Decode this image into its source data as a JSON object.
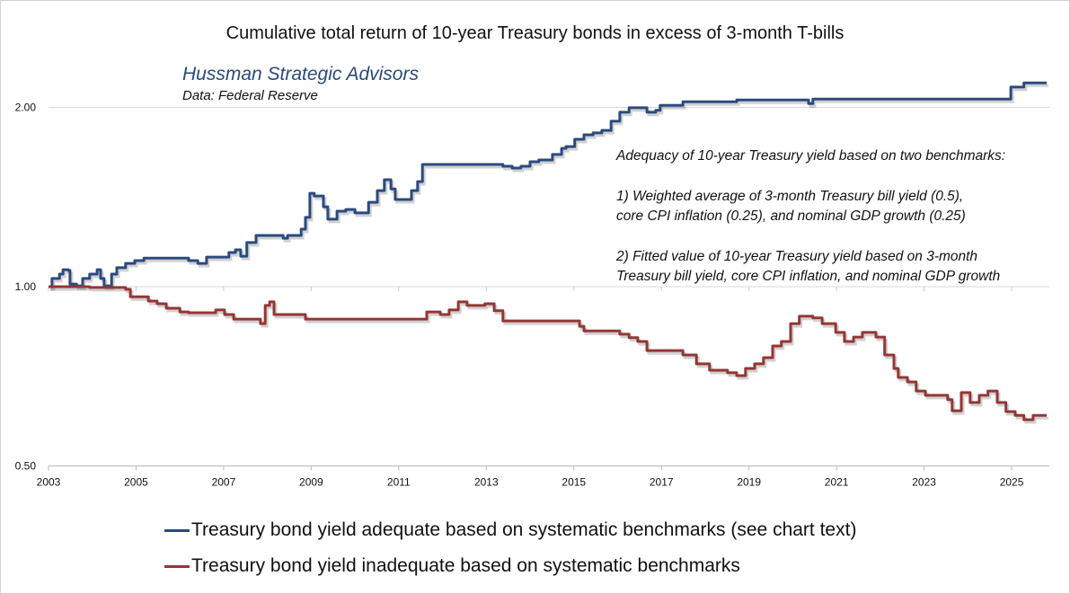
{
  "chart_data": {
    "type": "line",
    "title": "Cumulative total return of 10-year Treasury bonds in excess of 3-month T-bills",
    "subtitle": "Hussman Strategic Advisors",
    "source": "Data: Federal Reserve",
    "xlabel": "",
    "ylabel": "",
    "y_scale": "log",
    "ylim": [
      0.5,
      2.2
    ],
    "xlim": [
      2003,
      2025.9
    ],
    "y_ticks": [
      "0.50",
      "1.00",
      "2.00"
    ],
    "y_tick_values": [
      0.5,
      1.0,
      2.0
    ],
    "x_ticks": [
      "2003",
      "2005",
      "2007",
      "2009",
      "2011",
      "2013",
      "2015",
      "2017",
      "2019",
      "2021",
      "2023",
      "2025"
    ],
    "grid": "horizontal",
    "legend_placement": "bottom",
    "annotation": [
      "Adequacy of 10-year Treasury yield based on two benchmarks:",
      "1) Weighted average of 3-month Treasury bill yield (0.5),",
      "core CPI inflation (0.25), and nominal GDP growth (0.25)",
      "2) Fitted value of 10-year Treasury yield based on 3-month",
      "Treasury bill yield, core CPI inflation, and nominal GDP growth"
    ],
    "series": [
      {
        "name": "Treasury bond yield adequate based on systematic benchmarks (see chart text)",
        "color": "#2a4a7f",
        "x": [
          2003.0,
          2003.08,
          2003.16,
          2003.25,
          2003.33,
          2003.45,
          2003.49,
          2003.64,
          2003.78,
          2003.94,
          2004.11,
          2004.19,
          2004.27,
          2004.35,
          2004.44,
          2004.56,
          2004.76,
          2004.97,
          2005.18,
          2005.59,
          2006.0,
          2006.2,
          2006.41,
          2006.61,
          2007.12,
          2007.27,
          2007.39,
          2007.53,
          2007.74,
          2008.25,
          2008.36,
          2008.46,
          2008.77,
          2008.87,
          2008.97,
          2009.07,
          2009.28,
          2009.38,
          2009.59,
          2009.79,
          2010.0,
          2010.2,
          2010.31,
          2010.51,
          2010.67,
          2010.82,
          2010.92,
          2011.13,
          2011.29,
          2011.43,
          2011.54,
          2012.56,
          2013.28,
          2013.38,
          2013.59,
          2013.79,
          2014.0,
          2014.2,
          2014.51,
          2014.72,
          2014.82,
          2015.02,
          2015.23,
          2015.44,
          2015.64,
          2015.85,
          2016.05,
          2016.26,
          2016.46,
          2016.67,
          2016.87,
          2016.97,
          2017.49,
          2018.1,
          2018.31,
          2018.72,
          2019.33,
          2020.15,
          2020.36,
          2020.46,
          2021.39,
          2023.44,
          2024.46,
          2024.87,
          2024.98,
          2025.28,
          2025.8
        ],
        "values": [
          1.0,
          1.032,
          1.032,
          1.05,
          1.068,
          1.065,
          1.01,
          1.003,
          1.032,
          1.05,
          1.068,
          1.032,
          1.003,
          1.003,
          1.05,
          1.076,
          1.094,
          1.106,
          1.117,
          1.117,
          1.117,
          1.106,
          1.094,
          1.121,
          1.141,
          1.153,
          1.125,
          1.186,
          1.219,
          1.219,
          1.206,
          1.219,
          1.249,
          1.307,
          1.435,
          1.42,
          1.362,
          1.298,
          1.339,
          1.348,
          1.33,
          1.33,
          1.386,
          1.45,
          1.512,
          1.459,
          1.401,
          1.401,
          1.45,
          1.501,
          1.604,
          1.604,
          1.604,
          1.593,
          1.582,
          1.593,
          1.621,
          1.632,
          1.667,
          1.707,
          1.719,
          1.768,
          1.799,
          1.812,
          1.83,
          1.896,
          1.963,
          1.997,
          1.997,
          1.963,
          1.977,
          2.016,
          2.044,
          2.044,
          2.044,
          2.058,
          2.058,
          2.058,
          2.03,
          2.065,
          2.065,
          2.065,
          2.065,
          2.065,
          2.163,
          2.198,
          2.198
        ]
      },
      {
        "name": "Treasury bond yield inadequate based on systematic benchmarks",
        "color": "#943634",
        "x": [
          2003.0,
          2003.94,
          2004.35,
          2004.56,
          2004.76,
          2004.87,
          2005.07,
          2005.28,
          2005.48,
          2005.69,
          2006.0,
          2006.2,
          2006.51,
          2006.82,
          2007.02,
          2007.23,
          2007.64,
          2007.84,
          2007.95,
          2008.05,
          2008.15,
          2008.87,
          2010.1,
          2011.54,
          2011.64,
          2011.95,
          2012.15,
          2012.36,
          2012.56,
          2012.97,
          2013.18,
          2013.38,
          2014.2,
          2014.82,
          2015.02,
          2015.13,
          2015.23,
          2015.85,
          2016.05,
          2016.26,
          2016.46,
          2016.67,
          2017.28,
          2017.49,
          2017.8,
          2018.1,
          2018.51,
          2018.72,
          2018.92,
          2019.13,
          2019.33,
          2019.54,
          2019.74,
          2019.95,
          2020.15,
          2020.46,
          2020.67,
          2020.98,
          2021.18,
          2021.39,
          2021.59,
          2021.9,
          2022.1,
          2022.31,
          2022.41,
          2022.62,
          2022.82,
          2023.03,
          2023.23,
          2023.54,
          2023.64,
          2023.85,
          2024.05,
          2024.26,
          2024.46,
          2024.67,
          2024.87,
          2025.08,
          2025.28,
          2025.49,
          2025.8
        ],
        "values": [
          1.0,
          0.997,
          0.997,
          0.997,
          0.99,
          0.962,
          0.962,
          0.946,
          0.936,
          0.92,
          0.907,
          0.904,
          0.904,
          0.914,
          0.898,
          0.882,
          0.882,
          0.867,
          0.93,
          0.943,
          0.898,
          0.882,
          0.882,
          0.882,
          0.907,
          0.898,
          0.914,
          0.943,
          0.93,
          0.936,
          0.911,
          0.876,
          0.876,
          0.876,
          0.876,
          0.858,
          0.843,
          0.843,
          0.832,
          0.821,
          0.809,
          0.781,
          0.781,
          0.768,
          0.742,
          0.724,
          0.717,
          0.709,
          0.729,
          0.742,
          0.76,
          0.795,
          0.809,
          0.867,
          0.892,
          0.886,
          0.867,
          0.838,
          0.809,
          0.823,
          0.838,
          0.823,
          0.768,
          0.729,
          0.704,
          0.692,
          0.668,
          0.657,
          0.657,
          0.646,
          0.619,
          0.664,
          0.639,
          0.657,
          0.668,
          0.639,
          0.617,
          0.608,
          0.598,
          0.608,
          0.608
        ]
      }
    ]
  }
}
